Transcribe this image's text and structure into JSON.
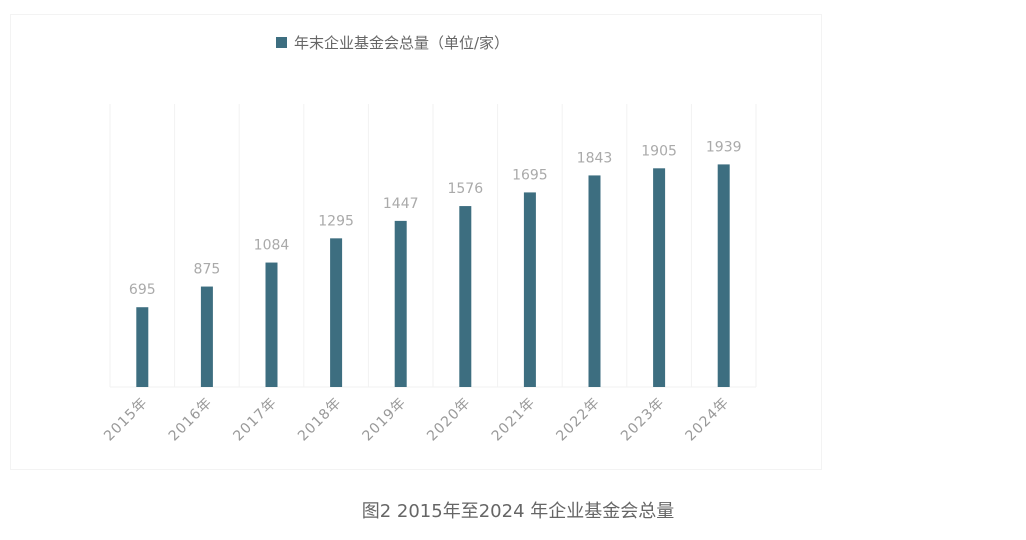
{
  "chart_data": {
    "type": "bar",
    "categories": [
      "2015年",
      "2016年",
      "2017年",
      "2018年",
      "2019年",
      "2020年",
      "2021年",
      "2022年",
      "2023年",
      "2024年"
    ],
    "series": [
      {
        "name": "年末企业基金会总量（单位/家）",
        "values": [
          695,
          875,
          1084,
          1295,
          1447,
          1576,
          1695,
          1843,
          1905,
          1939
        ],
        "color": "#3d6e80"
      }
    ],
    "ylim": [
      0,
      2500
    ],
    "grid": "vertical category separators",
    "legend": "top-center",
    "data_labels": true
  },
  "caption": "图2  2015年至2024 年企业基金会总量"
}
